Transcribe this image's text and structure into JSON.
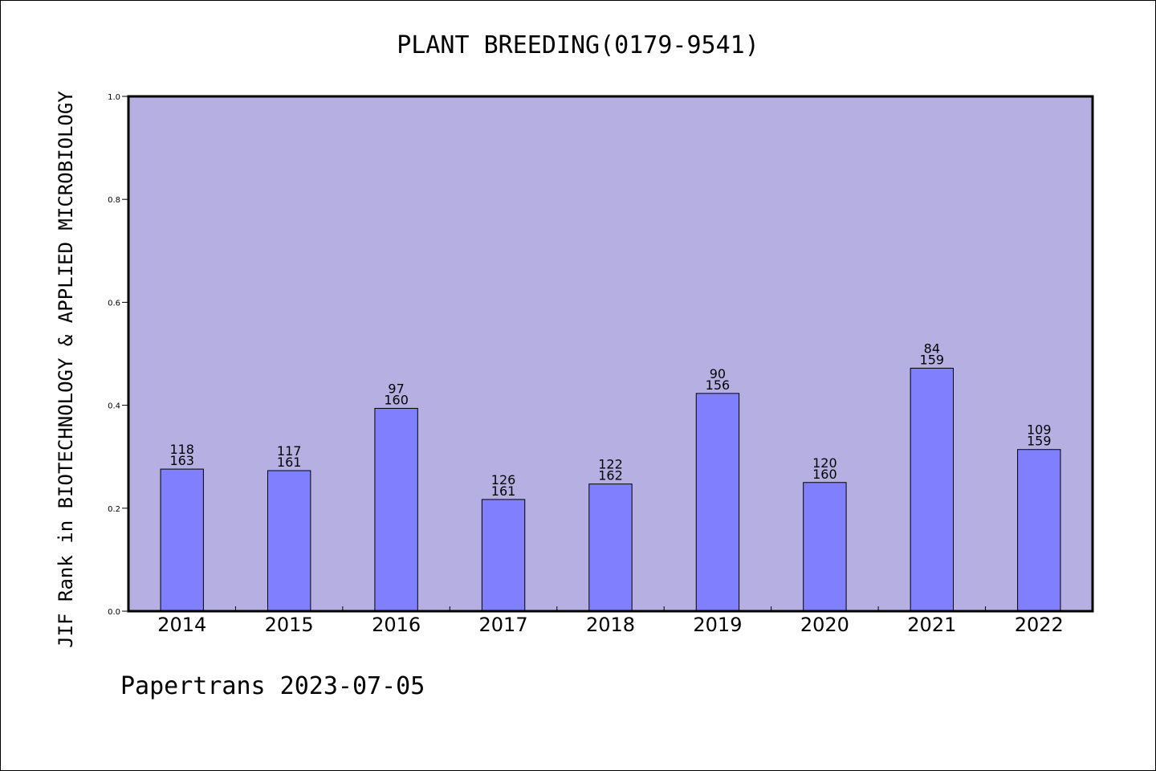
{
  "chart_data": {
    "type": "bar",
    "title": "PLANT BREEDING(0179-9541)",
    "ylabel": "JIF Rank in BIOTECHNOLOGY & APPLIED MICROBIOLOGY",
    "xlabel": "",
    "ylim": [
      0,
      1.0
    ],
    "yticks": [
      "0.0",
      "0.2",
      "0.4",
      "0.6",
      "0.8",
      "1.0"
    ],
    "categories": [
      "2014",
      "2015",
      "2016",
      "2017",
      "2018",
      "2019",
      "2020",
      "2021",
      "2022"
    ],
    "values": [
      0.276,
      0.273,
      0.394,
      0.217,
      0.247,
      0.423,
      0.25,
      0.472,
      0.314
    ],
    "rank": [
      118,
      117,
      97,
      126,
      122,
      90,
      120,
      84,
      109
    ],
    "total": [
      163,
      161,
      160,
      161,
      162,
      156,
      160,
      159,
      159
    ],
    "grid": false,
    "colors": {
      "plot_bg": "#b6b0e2",
      "bar": "#8080ff",
      "bar_edge": "#000000"
    }
  },
  "footer": "Papertrans 2023-07-05"
}
